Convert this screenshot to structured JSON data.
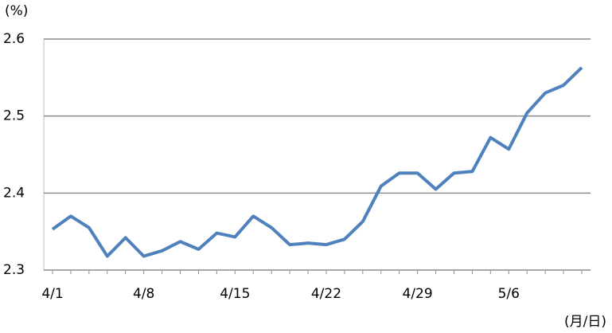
{
  "chart_data": {
    "type": "line",
    "y_label": "(%)",
    "x_label": "(月/日)",
    "categories": [
      "4/1",
      null,
      null,
      null,
      null,
      "4/8",
      null,
      null,
      null,
      null,
      "4/15",
      null,
      null,
      null,
      null,
      "4/22",
      null,
      null,
      null,
      null,
      "4/29",
      null,
      null,
      null,
      null,
      "5/6",
      null,
      null,
      null,
      null
    ],
    "series": [
      {
        "color": "#4f81bd",
        "values": [
          2.353,
          2.37,
          2.355,
          2.318,
          2.342,
          2.318,
          2.325,
          2.337,
          2.327,
          2.348,
          2.343,
          2.37,
          2.355,
          2.333,
          2.335,
          2.333,
          2.34,
          2.363,
          2.409,
          2.426,
          2.426,
          2.405,
          2.426,
          2.428,
          2.472,
          2.457,
          2.504,
          2.53,
          2.54,
          2.563
        ]
      }
    ],
    "ylim": [
      2.3,
      2.6
    ],
    "yticks": [
      2.3,
      2.4,
      2.5,
      2.6
    ],
    "grid": true
  }
}
